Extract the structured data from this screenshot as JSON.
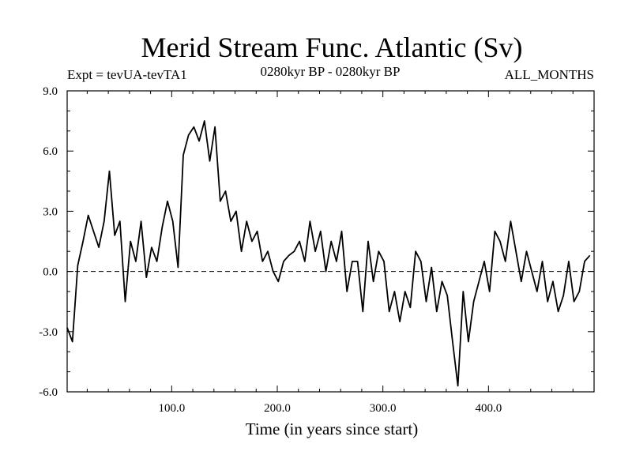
{
  "chart_data": {
    "type": "line",
    "title": "Merid Stream Func. Atlantic (Sv)",
    "subtitle_left": "Expt = tevUA-tevTA1",
    "subtitle_center": "0280kyr BP - 0280kyr BP",
    "subtitle_right": "ALL_MONTHS",
    "xlabel": "Time (in years since start)",
    "ylabel": "",
    "xlim": [
      1,
      500
    ],
    "ylim": [
      -6,
      9
    ],
    "x_ticks": [
      100,
      200,
      300,
      400
    ],
    "x_tick_labels": [
      "100.0",
      "200.0",
      "300.0",
      "400.0"
    ],
    "y_ticks": [
      -6,
      -3,
      0,
      3,
      6,
      9
    ],
    "y_tick_labels": [
      "-6.0",
      "-3.0",
      "0.0",
      "3.0",
      "6.0",
      "9.0"
    ],
    "reference_line": 0,
    "series": [
      {
        "name": "Merid Stream Func. Atlantic",
        "x_start": 1,
        "x_step": 5,
        "values": [
          -2.8,
          -3.5,
          0.3,
          1.5,
          2.8,
          2.0,
          1.2,
          2.5,
          5.0,
          1.8,
          2.5,
          -1.5,
          1.5,
          0.5,
          2.5,
          -0.3,
          1.2,
          0.5,
          2.2,
          3.5,
          2.5,
          0.2,
          5.8,
          6.8,
          7.2,
          6.5,
          7.5,
          5.5,
          7.2,
          3.5,
          4.0,
          2.5,
          3.0,
          1.0,
          2.5,
          1.5,
          2.0,
          0.5,
          1.0,
          0.0,
          -0.5,
          0.5,
          0.8,
          1.0,
          1.5,
          0.5,
          2.5,
          1.0,
          2.0,
          0.0,
          1.5,
          0.5,
          2.0,
          -1.0,
          0.5,
          0.5,
          -2.0,
          1.5,
          -0.5,
          1.0,
          0.5,
          -2.0,
          -1.0,
          -2.5,
          -1.0,
          -1.8,
          1.0,
          0.5,
          -1.5,
          0.2,
          -2.0,
          -0.5,
          -1.2,
          -3.5,
          -5.7,
          -1.0,
          -3.5,
          -1.5,
          -0.5,
          0.5,
          -1.0,
          2.0,
          1.5,
          0.5,
          2.5,
          1.0,
          -0.5,
          1.0,
          0.0,
          -1.0,
          0.5,
          -1.5,
          -0.5,
          -2.0,
          -1.2,
          0.5,
          -1.5,
          -1.0,
          0.5,
          0.8
        ]
      }
    ]
  }
}
